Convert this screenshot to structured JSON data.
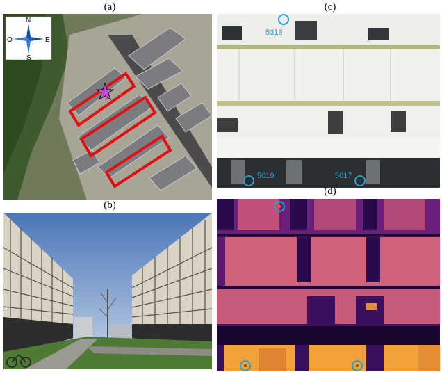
{
  "panels": {
    "a": {
      "label": "(a)",
      "compass": {
        "n": "N",
        "s": "S",
        "e": "E",
        "w": "O"
      }
    },
    "b": {
      "label": "(b)"
    },
    "c": {
      "label": "(c)",
      "markers": [
        "5318",
        "5019",
        "5017"
      ]
    },
    "d": {
      "label": "(d)"
    }
  },
  "colors": {
    "highlight_box": "#e01010",
    "star": "#c04bd0",
    "marker_circle": "#1fa3d6",
    "thermal_dark": "#2a0a4a",
    "thermal_hot": "#f2a23a"
  }
}
